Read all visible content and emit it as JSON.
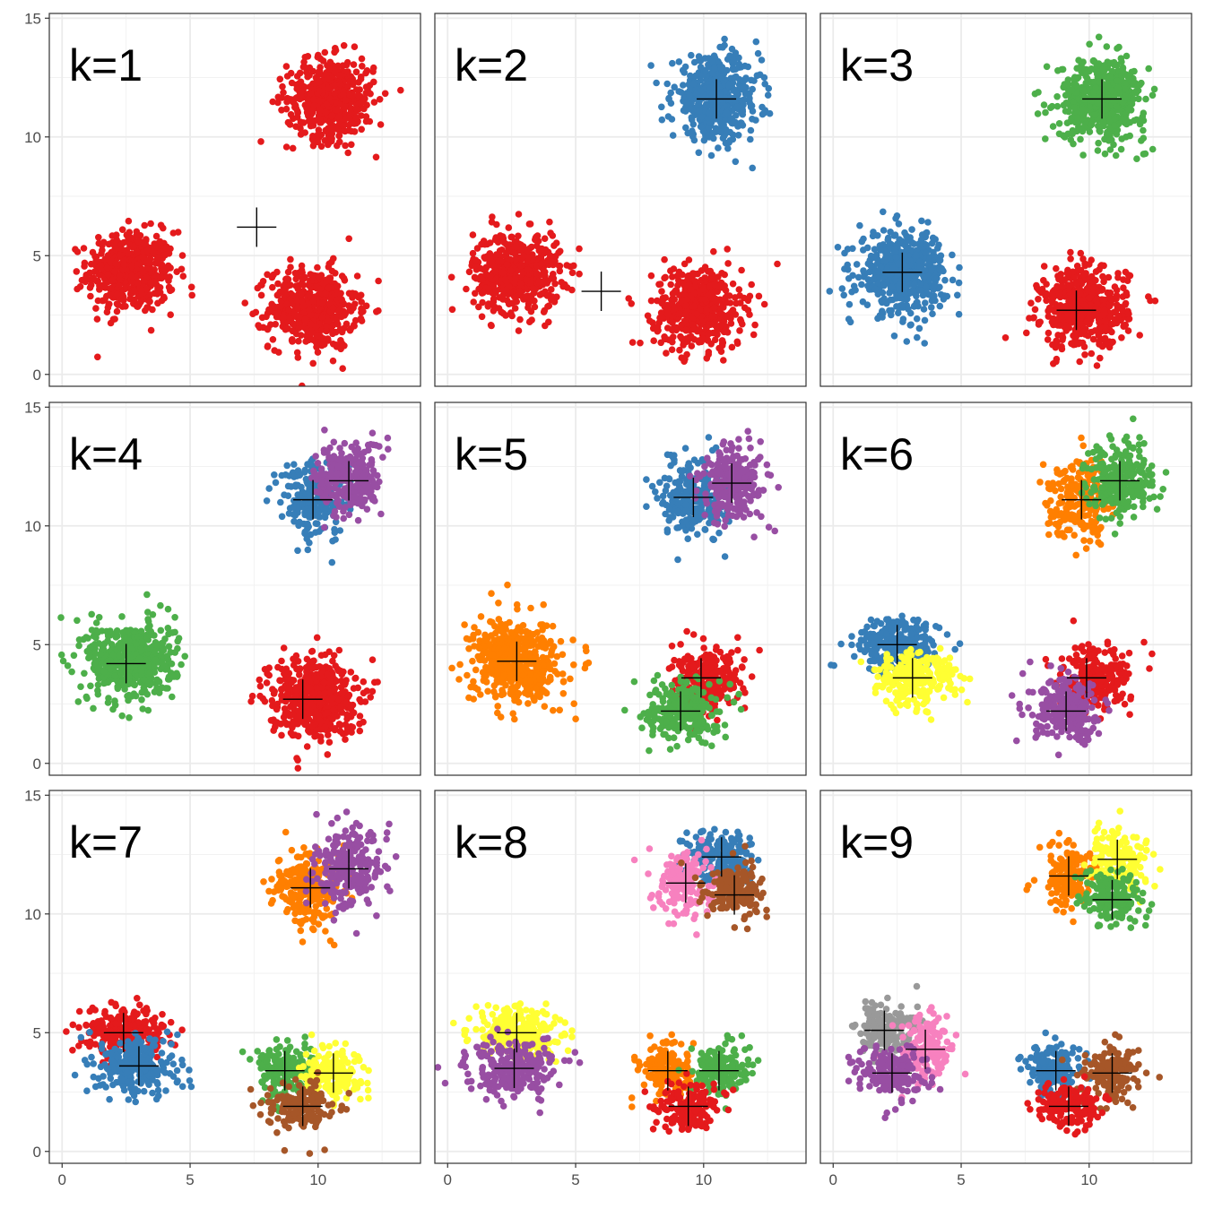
{
  "chart_data": {
    "type": "scatter",
    "description_of_layout": "faceted",
    "x_range": [
      -0.5,
      14
    ],
    "y_range": [
      -0.5,
      15.2
    ],
    "x_ticks": [
      "0",
      "5",
      "10"
    ],
    "y_ticks": [
      "0",
      "5",
      "10",
      "15"
    ],
    "grid": true,
    "palette": {
      "red": "#E41A1C",
      "blue": "#377EB8",
      "green": "#4DAF4A",
      "purple": "#984EA3",
      "orange": "#FF7F00",
      "yellow": "#FFFF33",
      "brown": "#A65628",
      "pink": "#F781BF",
      "grey": "#999999"
    },
    "facets": [
      {
        "label": "k=1",
        "groups": [
          {
            "color": "red",
            "cx": 2.7,
            "cy": 4.3,
            "sx": 0.85,
            "sy": 0.85,
            "n": 500
          },
          {
            "color": "red",
            "cx": 9.8,
            "cy": 2.8,
            "sx": 0.85,
            "sy": 0.85,
            "n": 500
          },
          {
            "color": "red",
            "cx": 10.5,
            "cy": 11.6,
            "sx": 0.85,
            "sy": 0.85,
            "n": 500
          }
        ],
        "centroids": [
          [
            7.6,
            6.2
          ]
        ]
      },
      {
        "label": "k=2",
        "groups": [
          {
            "color": "red",
            "cx": 2.7,
            "cy": 4.3,
            "sx": 0.85,
            "sy": 0.85,
            "n": 500
          },
          {
            "color": "red",
            "cx": 9.8,
            "cy": 2.8,
            "sx": 0.85,
            "sy": 0.85,
            "n": 500
          },
          {
            "color": "blue",
            "cx": 10.5,
            "cy": 11.6,
            "sx": 0.85,
            "sy": 0.85,
            "n": 500
          }
        ],
        "centroids": [
          [
            6.0,
            3.5
          ],
          [
            10.5,
            11.6
          ]
        ]
      },
      {
        "label": "k=3",
        "groups": [
          {
            "color": "blue",
            "cx": 2.7,
            "cy": 4.3,
            "sx": 0.85,
            "sy": 0.85,
            "n": 500
          },
          {
            "color": "red",
            "cx": 9.8,
            "cy": 2.8,
            "sx": 0.85,
            "sy": 0.85,
            "n": 500
          },
          {
            "color": "green",
            "cx": 10.5,
            "cy": 11.6,
            "sx": 0.85,
            "sy": 0.85,
            "n": 500
          }
        ],
        "centroids": [
          [
            2.7,
            4.3
          ],
          [
            9.5,
            2.7
          ],
          [
            10.5,
            11.6
          ]
        ]
      },
      {
        "label": "k=4",
        "groups": [
          {
            "color": "green",
            "cx": 2.7,
            "cy": 4.3,
            "sx": 0.85,
            "sy": 0.85,
            "n": 500
          },
          {
            "color": "red",
            "cx": 9.8,
            "cy": 2.8,
            "sx": 0.85,
            "sy": 0.85,
            "n": 500
          },
          {
            "color": "blue",
            "cx": 9.9,
            "cy": 11.2,
            "sx": 0.65,
            "sy": 0.8,
            "n": 250
          },
          {
            "color": "purple",
            "cx": 11.2,
            "cy": 12.0,
            "sx": 0.65,
            "sy": 0.8,
            "n": 250
          }
        ],
        "centroids": [
          [
            2.5,
            4.2
          ],
          [
            9.4,
            2.7
          ],
          [
            9.8,
            11.1
          ],
          [
            11.2,
            11.9
          ]
        ]
      },
      {
        "label": "k=5",
        "groups": [
          {
            "color": "orange",
            "cx": 2.7,
            "cy": 4.3,
            "sx": 0.85,
            "sy": 0.85,
            "n": 500
          },
          {
            "color": "red",
            "cx": 10.2,
            "cy": 3.5,
            "sx": 0.7,
            "sy": 0.65,
            "n": 250
          },
          {
            "color": "green",
            "cx": 9.2,
            "cy": 2.2,
            "sx": 0.7,
            "sy": 0.65,
            "n": 250
          },
          {
            "color": "blue",
            "cx": 9.6,
            "cy": 11.2,
            "sx": 0.65,
            "sy": 0.8,
            "n": 250
          },
          {
            "color": "purple",
            "cx": 11.2,
            "cy": 11.8,
            "sx": 0.65,
            "sy": 0.8,
            "n": 250
          }
        ],
        "centroids": [
          [
            2.7,
            4.3
          ],
          [
            9.9,
            3.6
          ],
          [
            9.1,
            2.2
          ],
          [
            9.6,
            11.2
          ],
          [
            11.1,
            11.8
          ]
        ]
      },
      {
        "label": "k=6",
        "groups": [
          {
            "color": "blue",
            "cx": 2.5,
            "cy": 5.0,
            "sx": 0.8,
            "sy": 0.55,
            "n": 250
          },
          {
            "color": "yellow",
            "cx": 3.2,
            "cy": 3.6,
            "sx": 0.8,
            "sy": 0.6,
            "n": 250
          },
          {
            "color": "red",
            "cx": 10.2,
            "cy": 3.5,
            "sx": 0.7,
            "sy": 0.65,
            "n": 250
          },
          {
            "color": "purple",
            "cx": 9.2,
            "cy": 2.2,
            "sx": 0.7,
            "sy": 0.65,
            "n": 250
          },
          {
            "color": "orange",
            "cx": 9.7,
            "cy": 11.2,
            "sx": 0.65,
            "sy": 0.8,
            "n": 250
          },
          {
            "color": "green",
            "cx": 11.2,
            "cy": 11.9,
            "sx": 0.65,
            "sy": 0.8,
            "n": 250
          }
        ],
        "centroids": [
          [
            2.5,
            5.0
          ],
          [
            3.1,
            3.6
          ],
          [
            9.9,
            3.6
          ],
          [
            9.1,
            2.2
          ],
          [
            9.7,
            11.1
          ],
          [
            11.2,
            11.9
          ]
        ]
      },
      {
        "label": "k=7",
        "groups": [
          {
            "color": "red",
            "cx": 2.4,
            "cy": 5.0,
            "sx": 0.8,
            "sy": 0.55,
            "n": 250
          },
          {
            "color": "blue",
            "cx": 3.0,
            "cy": 3.6,
            "sx": 0.8,
            "sy": 0.6,
            "n": 250
          },
          {
            "color": "green",
            "cx": 8.7,
            "cy": 3.4,
            "sx": 0.55,
            "sy": 0.55,
            "n": 170
          },
          {
            "color": "yellow",
            "cx": 10.6,
            "cy": 3.3,
            "sx": 0.55,
            "sy": 0.55,
            "n": 170
          },
          {
            "color": "brown",
            "cx": 9.4,
            "cy": 1.9,
            "sx": 0.65,
            "sy": 0.5,
            "n": 170
          },
          {
            "color": "orange",
            "cx": 9.6,
            "cy": 11.1,
            "sx": 0.65,
            "sy": 0.8,
            "n": 250
          },
          {
            "color": "purple",
            "cx": 11.2,
            "cy": 11.9,
            "sx": 0.65,
            "sy": 0.8,
            "n": 250
          }
        ],
        "centroids": [
          [
            2.4,
            5.0
          ],
          [
            3.0,
            3.6
          ],
          [
            8.7,
            3.4
          ],
          [
            10.6,
            3.3
          ],
          [
            9.4,
            1.9
          ],
          [
            9.7,
            11.1
          ],
          [
            11.2,
            11.9
          ]
        ]
      },
      {
        "label": "k=8",
        "groups": [
          {
            "color": "yellow",
            "cx": 2.7,
            "cy": 5.0,
            "sx": 0.85,
            "sy": 0.55,
            "n": 250
          },
          {
            "color": "purple",
            "cx": 2.6,
            "cy": 3.5,
            "sx": 0.85,
            "sy": 0.6,
            "n": 250
          },
          {
            "color": "orange",
            "cx": 8.6,
            "cy": 3.4,
            "sx": 0.55,
            "sy": 0.55,
            "n": 170
          },
          {
            "color": "green",
            "cx": 10.6,
            "cy": 3.4,
            "sx": 0.55,
            "sy": 0.55,
            "n": 170
          },
          {
            "color": "red",
            "cx": 9.4,
            "cy": 1.9,
            "sx": 0.65,
            "sy": 0.5,
            "n": 170
          },
          {
            "color": "blue",
            "cx": 10.7,
            "cy": 12.5,
            "sx": 0.65,
            "sy": 0.55,
            "n": 170
          },
          {
            "color": "pink",
            "cx": 9.3,
            "cy": 11.3,
            "sx": 0.55,
            "sy": 0.7,
            "n": 170
          },
          {
            "color": "brown",
            "cx": 11.2,
            "cy": 10.9,
            "sx": 0.6,
            "sy": 0.6,
            "n": 170
          }
        ],
        "centroids": [
          [
            2.7,
            5.0
          ],
          [
            2.6,
            3.5
          ],
          [
            8.6,
            3.4
          ],
          [
            10.6,
            3.4
          ],
          [
            9.4,
            1.9
          ],
          [
            10.7,
            12.4
          ],
          [
            9.3,
            11.3
          ],
          [
            11.2,
            10.8
          ]
        ]
      },
      {
        "label": "k=9",
        "groups": [
          {
            "color": "grey",
            "cx": 2.0,
            "cy": 5.1,
            "sx": 0.6,
            "sy": 0.6,
            "n": 170
          },
          {
            "color": "pink",
            "cx": 3.6,
            "cy": 4.3,
            "sx": 0.5,
            "sy": 0.7,
            "n": 170
          },
          {
            "color": "purple",
            "cx": 2.3,
            "cy": 3.3,
            "sx": 0.7,
            "sy": 0.55,
            "n": 170
          },
          {
            "color": "blue",
            "cx": 8.7,
            "cy": 3.4,
            "sx": 0.55,
            "sy": 0.55,
            "n": 170
          },
          {
            "color": "brown",
            "cx": 10.9,
            "cy": 3.3,
            "sx": 0.55,
            "sy": 0.55,
            "n": 170
          },
          {
            "color": "red",
            "cx": 9.2,
            "cy": 1.9,
            "sx": 0.65,
            "sy": 0.5,
            "n": 170
          },
          {
            "color": "orange",
            "cx": 9.2,
            "cy": 11.6,
            "sx": 0.55,
            "sy": 0.7,
            "n": 170
          },
          {
            "color": "yellow",
            "cx": 11.2,
            "cy": 12.3,
            "sx": 0.6,
            "sy": 0.6,
            "n": 170
          },
          {
            "color": "green",
            "cx": 10.9,
            "cy": 10.6,
            "sx": 0.6,
            "sy": 0.55,
            "n": 170
          }
        ],
        "centroids": [
          [
            2.0,
            5.1
          ],
          [
            3.6,
            4.3
          ],
          [
            2.3,
            3.3
          ],
          [
            8.7,
            3.4
          ],
          [
            10.9,
            3.3
          ],
          [
            9.2,
            1.9
          ],
          [
            9.2,
            11.6
          ],
          [
            11.1,
            12.3
          ],
          [
            10.9,
            10.6
          ]
        ]
      }
    ]
  }
}
